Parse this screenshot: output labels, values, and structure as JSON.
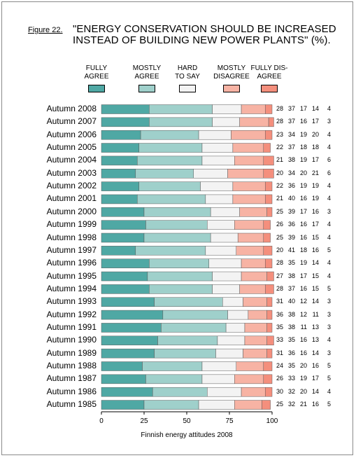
{
  "figure_label": "Figure 22.",
  "title_line1": "\"ENERGY CONSERVATION SHOULD BE INCREASED",
  "title_line2": "INSTEAD OF BUILDING NEW POWER PLANTS\" (%).",
  "footer": "Finnish energy attitudes 2008",
  "chart_data": {
    "type": "bar",
    "orientation": "horizontal",
    "stacked": true,
    "title": "\"ENERGY CONSERVATION SHOULD BE INCREASED INSTEAD OF BUILDING NEW POWER PLANTS\" (%).",
    "xlabel": "Finnish energy attitudes 2008",
    "xlim": [
      0,
      100
    ],
    "xticks": [
      "0",
      "25",
      "50",
      "75",
      "100"
    ],
    "legend_placement": "top",
    "legend": [
      {
        "line1": "FULLY",
        "line2": "AGREE",
        "color": "#4fa8a4"
      },
      {
        "line1": "MOSTLY",
        "line2": "AGREE",
        "color": "#9fd0cb"
      },
      {
        "line1": "HARD",
        "line2": "TO SAY",
        "color": "#f3f3f3"
      },
      {
        "line1": "MOSTLY",
        "line2": "DISAGREE",
        "color": "#f7b3a4"
      },
      {
        "line1": "FULLY DIS-",
        "line2": "AGREE",
        "color": "#f48f7d"
      }
    ],
    "categories": [
      "Autumn 2008",
      "Autumn 2007",
      "Autumn 2006",
      "Autumn 2005",
      "Autumn 2004",
      "Autumn 2003",
      "Autumn 2002",
      "Autumn 2001",
      "Autumn 2000",
      "Autumn 1999",
      "Autumn 1998",
      "Autumn 1997",
      "Autumn 1996",
      "Autumn 1995",
      "Autumn 1994",
      "Autumn 1993",
      "Autumn 1992",
      "Autumn 1991",
      "Autumn 1990",
      "Autumn 1989",
      "Autumn 1988",
      "Autumn 1987",
      "Autumn 1986",
      "Autumn 1985"
    ],
    "values": [
      [
        28,
        37,
        17,
        14,
        4
      ],
      [
        28,
        37,
        16,
        17,
        3
      ],
      [
        23,
        34,
        19,
        20,
        4
      ],
      [
        22,
        37,
        18,
        18,
        4
      ],
      [
        21,
        38,
        19,
        17,
        6
      ],
      [
        20,
        34,
        20,
        21,
        6
      ],
      [
        22,
        36,
        19,
        19,
        4
      ],
      [
        21,
        40,
        16,
        19,
        4
      ],
      [
        25,
        39,
        17,
        16,
        3
      ],
      [
        26,
        36,
        16,
        17,
        4
      ],
      [
        25,
        39,
        16,
        15,
        4
      ],
      [
        20,
        41,
        18,
        16,
        5
      ],
      [
        28,
        35,
        19,
        14,
        4
      ],
      [
        27,
        38,
        17,
        15,
        4
      ],
      [
        28,
        37,
        16,
        15,
        5
      ],
      [
        31,
        40,
        12,
        14,
        3
      ],
      [
        36,
        38,
        12,
        11,
        3
      ],
      [
        35,
        38,
        11,
        13,
        3
      ],
      [
        33,
        35,
        16,
        13,
        4
      ],
      [
        31,
        36,
        16,
        14,
        3
      ],
      [
        24,
        35,
        20,
        16,
        5
      ],
      [
        26,
        33,
        19,
        17,
        5
      ],
      [
        30,
        32,
        20,
        14,
        4
      ],
      [
        25,
        32,
        21,
        16,
        5
      ]
    ]
  }
}
